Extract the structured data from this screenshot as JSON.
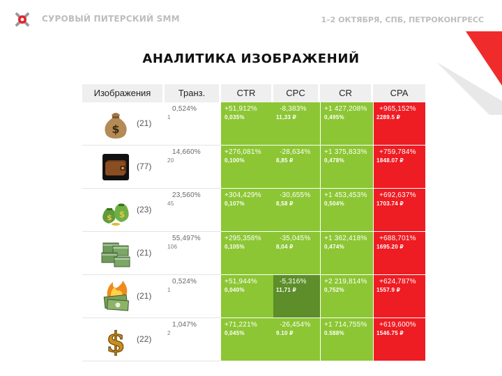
{
  "header": {
    "brand": "СУРОВЫЙ ПИТЕРСКИЙ SMM",
    "event": "1–2 ОКТЯБРЯ, СПБ, ПЕТРОКОНГРЕСС"
  },
  "title": "АНАЛИТИКА ИЗОБРАЖЕНИЙ",
  "columns": [
    "Изображения",
    "Транз.",
    "CTR",
    "CPC",
    "CR",
    "CPA"
  ],
  "colors": {
    "green": "#8cc634",
    "dark_green": "#5d8e2a",
    "red": "#ee1c23",
    "header_bg": "#efefef"
  },
  "rows": [
    {
      "icon": "money-bag-icon",
      "count": "(21)",
      "trans_pct": "0,524%",
      "trans_n": "1",
      "ctr_pct": "+51,912%",
      "ctr_val": "0,035%",
      "cpc_pct": "-8,383%",
      "cpc_val": "11,33 ₽",
      "cr_pct": "+1 427,208%",
      "cr_val": "0,495%",
      "cpa_pct": "+965,152%",
      "cpa_val": "2289.5 ₽"
    },
    {
      "icon": "wallet-icon",
      "count": "(77)",
      "trans_pct": "14,660%",
      "trans_n": "20",
      "ctr_pct": "+276,081%",
      "ctr_val": "0,100%",
      "cpc_pct": "-28,634%",
      "cpc_val": "8,85 ₽",
      "cr_pct": "+1 375,833%",
      "cr_val": "0,478%",
      "cpa_pct": "+759,784%",
      "cpa_val": "1848.07 ₽"
    },
    {
      "icon": "money-bags-icon",
      "count": "(23)",
      "trans_pct": "23,560%",
      "trans_n": "45",
      "ctr_pct": "+304,429%",
      "ctr_val": "0,107%",
      "cpc_pct": "-30,655%",
      "cpc_val": "8,58 ₽",
      "cr_pct": "+1 453,453%",
      "cr_val": "0,504%",
      "cpa_pct": "+692,637%",
      "cpa_val": "1703.74 ₽"
    },
    {
      "icon": "cash-stacks-icon",
      "count": "(21)",
      "trans_pct": "55,497%",
      "trans_n": "106",
      "ctr_pct": "+295,358%",
      "ctr_val": "0,105%",
      "cpc_pct": "-35,045%",
      "cpc_val": "8,04 ₽",
      "cr_pct": "+1 362,418%",
      "cr_val": "0,474%",
      "cpa_pct": "+688,701%",
      "cpa_val": "1695.20 ₽"
    },
    {
      "icon": "burning-money-icon",
      "count": "(21)",
      "trans_pct": "0,524%",
      "trans_n": "1",
      "ctr_pct": "+51,944%",
      "ctr_val": "0,040%",
      "cpc_pct": "-5,316%",
      "cpc_val": "11,71 ₽",
      "cr_pct": "+2 219,814%",
      "cr_val": "0,752%",
      "cpa_pct": "+624,787%",
      "cpa_val": "1557.9 ₽"
    },
    {
      "icon": "dollar-sign-icon",
      "count": "(22)",
      "trans_pct": "1,047%",
      "trans_n": "2",
      "ctr_pct": "+71,221%",
      "ctr_val": "0,045%",
      "cpc_pct": "-26,454%",
      "cpc_val": "9.10 ₽",
      "cr_pct": "+1 714,755%",
      "cr_val": "0.588%",
      "cpa_pct": "+619,600%",
      "cpa_val": "1546.75 ₽"
    }
  ]
}
